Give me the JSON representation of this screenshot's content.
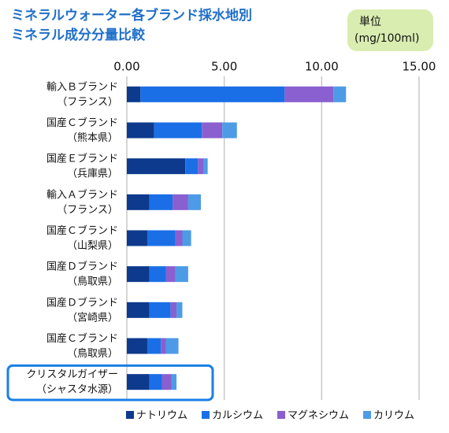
{
  "chart_data": {
    "type": "stacked-barh",
    "title": [
      "ミネラルウォーター各ブランド採水地別",
      "ミネラル成分分量比較"
    ],
    "unit": [
      "単位",
      "(mg/100ml)"
    ],
    "categories": [
      [
        "輸入Ｂブランド",
        "（フランス）"
      ],
      [
        "国産Ｃブランド",
        "（熊本県）"
      ],
      [
        "国産Ｅブランド",
        "（兵庫県）"
      ],
      [
        "輸入Ａブランド",
        "（フランス）"
      ],
      [
        "国産Ｃブランド",
        "（山梨県）"
      ],
      [
        "国産Ｄブランド",
        "（鳥取県）"
      ],
      [
        "国産Ｄブランド",
        "（宮崎県）"
      ],
      [
        "国産Ｃブランド",
        "（鳥取県）"
      ],
      [
        "クリスタルガイザー",
        "（シャスタ水源）"
      ]
    ],
    "series": [
      {
        "name": "ナトリウム",
        "color": "#0d3a8c",
        "values": [
          0.7,
          1.4,
          3.0,
          1.15,
          1.05,
          1.15,
          1.15,
          1.05,
          1.15
        ]
      },
      {
        "name": "カルシウム",
        "color": "#1a6fe6",
        "values": [
          7.4,
          2.45,
          0.65,
          1.2,
          1.45,
          0.85,
          1.1,
          0.7,
          0.65
        ]
      },
      {
        "name": "マグネシウム",
        "color": "#8a5fcf",
        "values": [
          2.5,
          1.05,
          0.3,
          0.8,
          0.35,
          0.5,
          0.3,
          0.25,
          0.5
        ]
      },
      {
        "name": "カリウム",
        "color": "#4d9be6",
        "values": [
          0.65,
          0.75,
          0.2,
          0.65,
          0.45,
          0.65,
          0.3,
          0.65,
          0.25
        ]
      }
    ],
    "xlim": [
      0,
      15
    ],
    "xticks": [
      {
        "value": 0,
        "label": "0.00"
      },
      {
        "value": 5,
        "label": "5.00"
      },
      {
        "value": 10,
        "label": "10.00"
      },
      {
        "value": 15,
        "label": "15.00"
      }
    ],
    "grid": true,
    "highlight_category": 8,
    "legend": "bottom"
  }
}
